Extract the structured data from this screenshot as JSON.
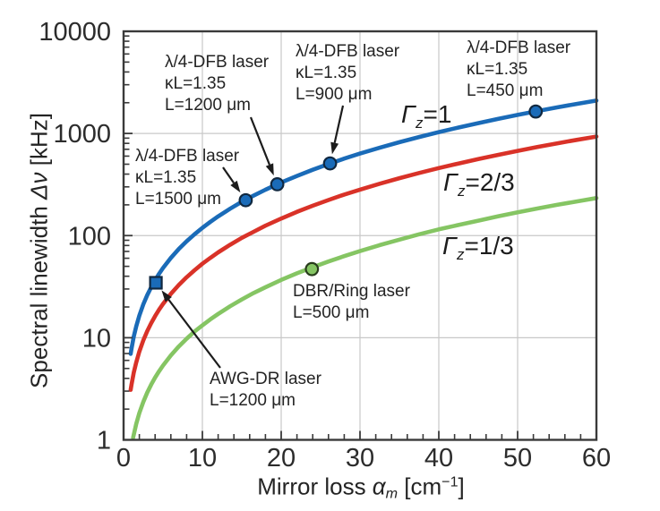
{
  "figure": {
    "background": "#ffffff"
  },
  "colors": {
    "grid": "#c8c8c8",
    "frame": "#3a3a3a",
    "tick": "#3a3a3a",
    "text": "#242424",
    "arrow": "#1c1c1c"
  },
  "axis_titles": {
    "x": {
      "pre": "Mirror loss ",
      "symbol": "α",
      "subscript": "m",
      "unit_open": " [cm",
      "superscript": "−1",
      "unit_close": "]"
    },
    "y": {
      "pre": "Spectral linewidth ",
      "symbol": "Δν",
      "unit": " [kHz]"
    }
  },
  "curve_labels": [
    {
      "symbol": "Γ",
      "subscript": "z",
      "value": "=1"
    },
    {
      "symbol": "Γ",
      "subscript": "z",
      "value": "=2/3"
    },
    {
      "symbol": "Γ",
      "subscript": "z",
      "value": "=1/3"
    }
  ],
  "annotations": {
    "dfb_1200": {
      "lines": [
        "λ/4-DFB laser",
        "κL=1.35",
        "L=1200 μm"
      ]
    },
    "dfb_900": {
      "lines": [
        "λ/4-DFB laser",
        "κL=1.35",
        "L=900 μm"
      ]
    },
    "dfb_450": {
      "lines": [
        "λ/4-DFB laser",
        "κL=1.35",
        "L=450 μm"
      ]
    },
    "dfb_1500": {
      "lines": [
        "λ/4-DFB laser",
        "κL=1.35",
        "L=1500 μm"
      ]
    },
    "dbr_ring": {
      "lines": [
        "DBR/Ring laser",
        "L=500 μm"
      ]
    },
    "awg_dr": {
      "lines": [
        "AWG-DR laser",
        "L=1200 μm"
      ]
    }
  },
  "chart_data": {
    "type": "line",
    "title": "",
    "xlabel": "Mirror loss αm [cm−1]",
    "ylabel": "Spectral linewidth Δν [kHz]",
    "x_axis": {
      "min": 0,
      "max": 60,
      "scale": "linear",
      "tick_values": [
        0,
        10,
        20,
        30,
        40,
        50,
        60
      ],
      "tick_labels": [
        "0",
        "10",
        "20",
        "30",
        "40",
        "50",
        "60"
      ],
      "minor_tick_step": 2,
      "grid_values": [
        10,
        20,
        30,
        40,
        50
      ]
    },
    "y_axis": {
      "min": 1,
      "max": 10000,
      "scale": "log",
      "tick_values": [
        1,
        10,
        100,
        1000,
        10000
      ],
      "tick_labels": [
        "1",
        "10",
        "100",
        "1000",
        "10000"
      ],
      "grid_values": [
        10,
        100,
        1000
      ]
    },
    "grid": true,
    "legend": "labels-on-curves",
    "series": [
      {
        "name": "Γz=1",
        "color": "#1a6bb8",
        "width": 4.6,
        "x": [
          0.9,
          1,
          1.3,
          1.6,
          2,
          2.5,
          3,
          3.5,
          4,
          4.5,
          5,
          6,
          7,
          8,
          9,
          10,
          11,
          12,
          13.5,
          15,
          16.5,
          18,
          20,
          22,
          24,
          26,
          28,
          30,
          32.5,
          35,
          37.5,
          40,
          42.5,
          45,
          47.5,
          50,
          52.5,
          55,
          57.5,
          60
        ],
        "y": [
          6.95,
          7.77,
          10.3,
          12.9,
          16.5,
          21.2,
          26.1,
          31.2,
          36.6,
          42.2,
          48.1,
          60.5,
          73.8,
          88,
          103,
          119,
          136,
          154,
          183,
          214,
          246,
          281,
          331,
          384,
          441,
          502,
          567,
          635,
          725,
          821,
          923,
          1031,
          1144,
          1263,
          1388,
          1519,
          1656,
          1798,
          1946,
          2100
        ]
      },
      {
        "name": "Γz=2/3",
        "color": "#d93228",
        "width": 4.6,
        "x": [
          0.9,
          1,
          1.3,
          1.6,
          2,
          2.5,
          3,
          3.5,
          4,
          4.5,
          5,
          6,
          7,
          8,
          9,
          10,
          11,
          12,
          13.5,
          15,
          16.5,
          18,
          20,
          22,
          24,
          26,
          28,
          30,
          32.5,
          35,
          37.5,
          40,
          42.5,
          45,
          47.5,
          50,
          52.5,
          55,
          57.5,
          60
        ],
        "y": [
          3.09,
          3.45,
          4.57,
          5.72,
          7.32,
          9.4,
          11.6,
          13.9,
          16.3,
          18.8,
          21.4,
          26.9,
          32.8,
          39.1,
          45.8,
          53,
          60.5,
          68.5,
          81.2,
          94.9,
          109,
          125,
          147,
          171,
          196,
          223,
          252,
          282,
          322,
          365,
          410,
          458,
          508,
          561,
          617,
          675,
          736,
          799,
          865,
          933
        ]
      },
      {
        "name": "Γz=1/3",
        "color": "#85c563",
        "width": 4.6,
        "x": [
          1.2,
          1.6,
          2,
          2.5,
          3,
          3.5,
          4,
          4.5,
          5,
          6,
          7,
          8,
          9,
          10,
          11,
          12,
          13.5,
          15,
          16.5,
          18,
          20,
          22,
          24,
          26,
          28,
          30,
          32.5,
          35,
          37.5,
          40,
          42.5,
          45,
          47.5,
          50,
          52.5,
          55,
          57.5,
          60
        ],
        "y": [
          1.05,
          1.43,
          1.83,
          2.35,
          2.9,
          3.47,
          4.07,
          4.69,
          5.34,
          6.72,
          8.2,
          9.78,
          11.5,
          13.2,
          15.1,
          17.1,
          20.3,
          23.7,
          27.4,
          31.2,
          36.8,
          42.7,
          49,
          55.8,
          62.9,
          70.5,
          80.6,
          91.2,
          103,
          115,
          127,
          140,
          154,
          169,
          184,
          200,
          216,
          233
        ]
      }
    ],
    "markers": [
      {
        "shape": "circle",
        "x": 15.5,
        "y": 222,
        "fill": "#1a6bb8",
        "stroke": "#102840",
        "series": "Γz=1"
      },
      {
        "shape": "circle",
        "x": 19.5,
        "y": 318,
        "fill": "#1a6bb8",
        "stroke": "#102840",
        "series": "Γz=1"
      },
      {
        "shape": "circle",
        "x": 26.2,
        "y": 509,
        "fill": "#1a6bb8",
        "stroke": "#102840",
        "series": "Γz=1"
      },
      {
        "shape": "circle",
        "x": 52.3,
        "y": 1640,
        "fill": "#1a6bb8",
        "stroke": "#102840",
        "series": "Γz=1"
      },
      {
        "shape": "square",
        "x": 4.1,
        "y": 34.5,
        "fill": "#1a6bb8",
        "stroke": "#102840",
        "series": "Γz=1"
      },
      {
        "shape": "circle",
        "x": 23.9,
        "y": 47,
        "fill": "#85c563",
        "stroke": "#283c1c",
        "series": "Γz=1/3"
      }
    ]
  }
}
